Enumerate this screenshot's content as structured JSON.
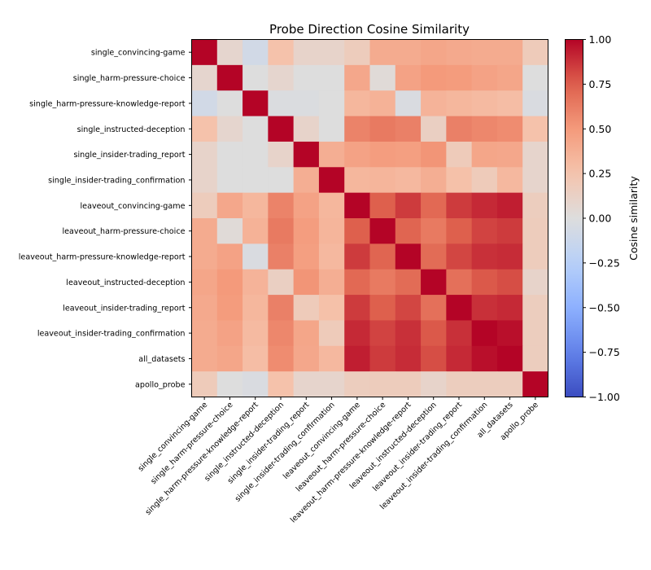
{
  "chart_data": {
    "type": "heatmap",
    "title": "Probe Direction Cosine Similarity",
    "xlabel": "",
    "ylabel": "",
    "labels": [
      "single_convincing-game",
      "single_harm-pressure-choice",
      "single_harm-pressure-knowledge-report",
      "single_instructed-deception",
      "single_insider-trading_report",
      "single_insider-trading_confirmation",
      "leaveout_convincing-game",
      "leaveout_harm-pressure-choice",
      "leaveout_harm-pressure-knowledge-report",
      "leaveout_instructed-deception",
      "leaveout_insider-trading_report",
      "leaveout_insider-trading_confirmation",
      "all_datasets",
      "apollo_probe"
    ],
    "matrix": [
      [
        1.0,
        0.08,
        -0.08,
        0.26,
        0.1,
        0.1,
        0.17,
        0.4,
        0.4,
        0.43,
        0.41,
        0.4,
        0.4,
        0.18
      ],
      [
        0.08,
        1.0,
        0.0,
        0.08,
        0.0,
        0.0,
        0.42,
        0.03,
        0.45,
        0.5,
        0.49,
        0.45,
        0.43,
        0.0
      ],
      [
        -0.08,
        0.0,
        1.0,
        -0.02,
        -0.02,
        0.0,
        0.33,
        0.36,
        -0.03,
        0.35,
        0.33,
        0.31,
        0.29,
        -0.03
      ],
      [
        0.26,
        0.08,
        0.0,
        1.0,
        0.1,
        0.0,
        0.6,
        0.64,
        0.61,
        0.14,
        0.61,
        0.58,
        0.56,
        0.26
      ],
      [
        0.1,
        0.0,
        0.0,
        0.1,
        1.0,
        0.38,
        0.45,
        0.48,
        0.47,
        0.52,
        0.18,
        0.43,
        0.42,
        0.09
      ],
      [
        0.1,
        0.0,
        0.0,
        0.0,
        0.38,
        1.0,
        0.33,
        0.34,
        0.32,
        0.38,
        0.27,
        0.18,
        0.32,
        0.09
      ],
      [
        0.17,
        0.42,
        0.33,
        0.6,
        0.45,
        0.33,
        1.0,
        0.75,
        0.85,
        0.71,
        0.85,
        0.9,
        0.93,
        0.16
      ],
      [
        0.4,
        0.03,
        0.36,
        0.64,
        0.48,
        0.34,
        0.75,
        1.0,
        0.73,
        0.64,
        0.75,
        0.83,
        0.85,
        0.17
      ],
      [
        0.4,
        0.45,
        -0.03,
        0.61,
        0.47,
        0.32,
        0.85,
        0.73,
        1.0,
        0.7,
        0.82,
        0.88,
        0.89,
        0.17
      ],
      [
        0.43,
        0.5,
        0.35,
        0.14,
        0.52,
        0.38,
        0.71,
        0.64,
        0.7,
        1.0,
        0.68,
        0.77,
        0.8,
        0.1
      ],
      [
        0.41,
        0.49,
        0.33,
        0.61,
        0.18,
        0.27,
        0.85,
        0.75,
        0.82,
        0.68,
        1.0,
        0.88,
        0.9,
        0.16
      ],
      [
        0.4,
        0.45,
        0.31,
        0.58,
        0.43,
        0.18,
        0.9,
        0.83,
        0.88,
        0.77,
        0.88,
        1.0,
        0.97,
        0.16
      ],
      [
        0.4,
        0.43,
        0.29,
        0.56,
        0.42,
        0.32,
        0.93,
        0.85,
        0.89,
        0.8,
        0.9,
        0.97,
        1.0,
        0.16
      ],
      [
        0.18,
        0.0,
        -0.03,
        0.26,
        0.09,
        0.09,
        0.16,
        0.17,
        0.17,
        0.1,
        0.16,
        0.16,
        0.16,
        1.0
      ]
    ],
    "colormap": "coolwarm",
    "vmin": -1.0,
    "vmax": 1.0,
    "colorbar": {
      "label": "Cosine similarity",
      "ticks": [
        1.0,
        0.75,
        0.5,
        0.25,
        0.0,
        -0.25,
        -0.5,
        -0.75,
        -1.0
      ],
      "tick_labels": [
        "1.00",
        "0.75",
        "0.50",
        "0.25",
        "0.00",
        "−0.25",
        "−0.50",
        "−0.75",
        "−1.00"
      ],
      "placement": "right"
    },
    "grid": false,
    "legend": "none"
  }
}
